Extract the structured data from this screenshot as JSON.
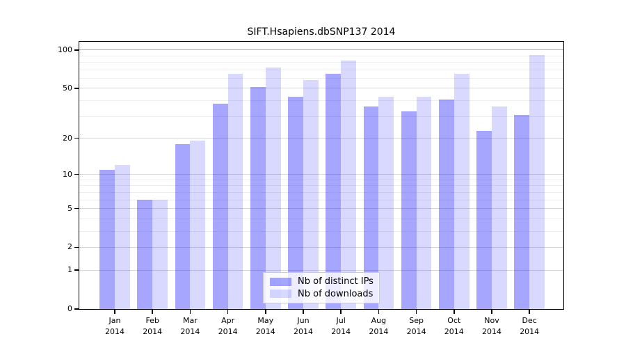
{
  "chart_data": {
    "type": "bar",
    "title": "SIFT.Hsapiens.dbSNP137 2014",
    "categories": [
      "Jan 2014",
      "Feb 2014",
      "Mar 2014",
      "Apr 2014",
      "May 2014",
      "Jun 2014",
      "Jul 2014",
      "Aug 2014",
      "Sep 2014",
      "Oct 2014",
      "Nov 2014",
      "Dec 2014"
    ],
    "x_tick_labels": [
      {
        "month": "Jan",
        "year": "2014"
      },
      {
        "month": "Feb",
        "year": "2014"
      },
      {
        "month": "Mar",
        "year": "2014"
      },
      {
        "month": "Apr",
        "year": "2014"
      },
      {
        "month": "May",
        "year": "2014"
      },
      {
        "month": "Jun",
        "year": "2014"
      },
      {
        "month": "Jul",
        "year": "2014"
      },
      {
        "month": "Aug",
        "year": "2014"
      },
      {
        "month": "Sep",
        "year": "2014"
      },
      {
        "month": "Oct",
        "year": "2014"
      },
      {
        "month": "Nov",
        "year": "2014"
      },
      {
        "month": "Dec",
        "year": "2014"
      }
    ],
    "series": [
      {
        "name": "Nb of distinct IPs",
        "fill": "rgba(0,0,255,0.35)",
        "swatch_hex": "#a6a6fa",
        "values": [
          11,
          6,
          18,
          38,
          51,
          43,
          65,
          36,
          33,
          41,
          23,
          31
        ]
      },
      {
        "name": "Nb of downloads",
        "fill": "rgba(0,0,255,0.15)",
        "swatch_hex": "#dadafa",
        "values": [
          12,
          6,
          19,
          65,
          73,
          58,
          83,
          43,
          43,
          65,
          36,
          92
        ]
      }
    ],
    "yscale": "log1p",
    "ylim": [
      0,
      116
    ],
    "yticks": [
      0,
      1,
      2,
      5,
      10,
      20,
      50,
      100
    ],
    "minor_gridlines": [
      3,
      4,
      6,
      7,
      8,
      9,
      30,
      40,
      60,
      70,
      80,
      90
    ],
    "grid": true,
    "legend_position": "lower-center-inside",
    "xlabel": "",
    "ylabel": ""
  }
}
